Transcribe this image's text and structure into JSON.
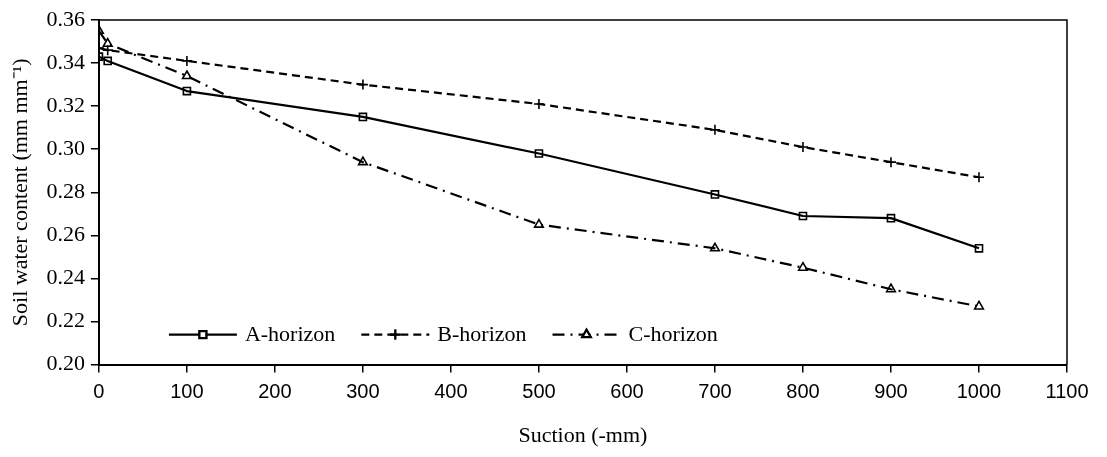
{
  "chart_data": {
    "type": "line",
    "xlabel": "Suction (-mm)",
    "ylabel": "Soil water content (mm mm⁻¹)",
    "x": [
      0,
      10,
      100,
      300,
      500,
      700,
      800,
      900,
      1000
    ],
    "series": [
      {
        "name": "A-horizon",
        "color": "#000000",
        "marker": "square",
        "line_style": "solid",
        "values": [
          0.343,
          0.341,
          0.327,
          0.315,
          0.298,
          0.279,
          0.269,
          0.268,
          0.254
        ]
      },
      {
        "name": "B-horizon",
        "color": "#000000",
        "marker": "cross",
        "line_style": "dashed",
        "values": [
          0.347,
          0.346,
          0.341,
          0.33,
          0.321,
          0.309,
          0.301,
          0.294,
          0.287
        ]
      },
      {
        "name": "C-horizon",
        "color": "#000000",
        "marker": "triangle",
        "line_style": "dashdot",
        "values": [
          0.355,
          0.349,
          0.334,
          0.294,
          0.265,
          0.254,
          0.245,
          0.235,
          0.227
        ]
      }
    ],
    "xlim": [
      0,
      1100
    ],
    "xticks": [
      0,
      100,
      200,
      300,
      400,
      500,
      600,
      700,
      800,
      900,
      1000,
      1100
    ],
    "ylim": [
      0.2,
      0.36
    ],
    "yticks": [
      {
        "value": 0.2,
        "label": "0.20"
      },
      {
        "value": 0.22,
        "label": "0.22"
      },
      {
        "value": 0.24,
        "label": "0.24"
      },
      {
        "value": 0.26,
        "label": "0.26"
      },
      {
        "value": 0.28,
        "label": "0.28"
      },
      {
        "value": 0.3,
        "label": "0.30"
      },
      {
        "value": 0.32,
        "label": "0.32"
      },
      {
        "value": 0.34,
        "label": "0.34"
      },
      {
        "value": 0.36,
        "label": "0.36"
      }
    ],
    "grid": false,
    "legend": "bottom left"
  }
}
